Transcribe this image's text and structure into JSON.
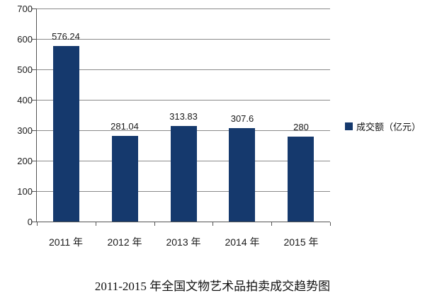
{
  "chart_data": {
    "type": "bar",
    "title": "2011-2015 年全国文物艺术品拍卖成交趋势图",
    "legend_label": "成交额（亿元）",
    "legend_position": "right",
    "categories": [
      "2011 年",
      "2012 年",
      "2013 年",
      "2014 年",
      "2015 年"
    ],
    "values": [
      576.24,
      281.04,
      313.83,
      307.6,
      280
    ],
    "value_labels": [
      "576.24",
      "281.04",
      "313.83",
      "307.6",
      "280"
    ],
    "xlabel": "",
    "ylabel": "",
    "ylim": [
      0,
      700
    ],
    "ytick_step": 100,
    "yticks": [
      "0",
      "100",
      "200",
      "300",
      "400",
      "500",
      "600",
      "700"
    ],
    "grid": "horizontal",
    "colors": {
      "bar": "#15396D",
      "gridline": "#8a8a8a",
      "axis": "#555555",
      "text": "#1a1a1a",
      "background": "#ffffff"
    }
  }
}
